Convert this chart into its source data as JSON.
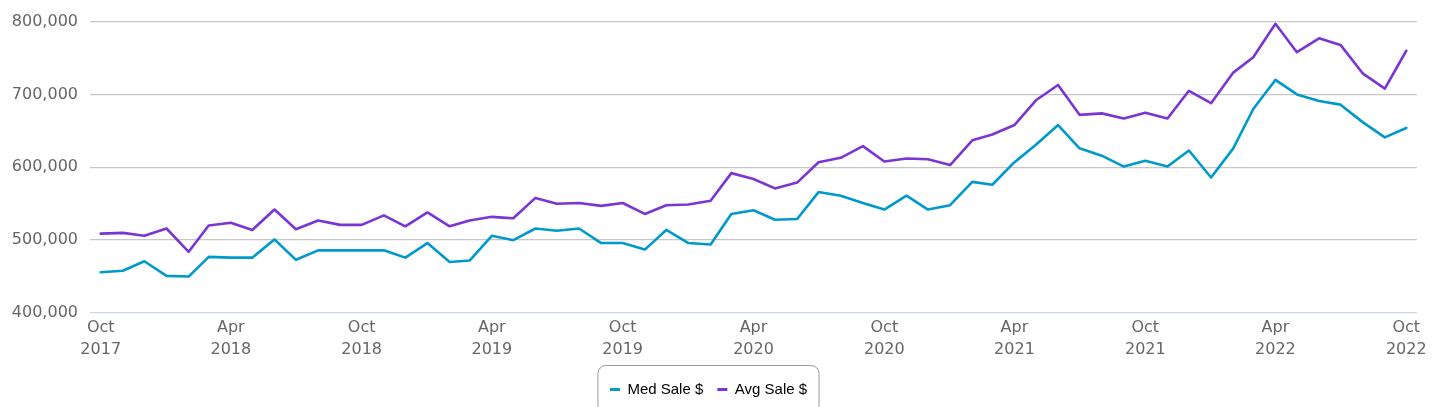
{
  "chart_data": {
    "type": "line",
    "x": [
      "2017-10",
      "2017-11",
      "2017-12",
      "2018-01",
      "2018-02",
      "2018-03",
      "2018-04",
      "2018-05",
      "2018-06",
      "2018-07",
      "2018-08",
      "2018-09",
      "2018-10",
      "2018-11",
      "2018-12",
      "2019-01",
      "2019-02",
      "2019-03",
      "2019-04",
      "2019-05",
      "2019-06",
      "2019-07",
      "2019-08",
      "2019-09",
      "2019-10",
      "2019-11",
      "2019-12",
      "2020-01",
      "2020-02",
      "2020-03",
      "2020-04",
      "2020-05",
      "2020-06",
      "2020-07",
      "2020-08",
      "2020-09",
      "2020-10",
      "2020-11",
      "2020-12",
      "2021-01",
      "2021-02",
      "2021-03",
      "2021-04",
      "2021-05",
      "2021-06",
      "2021-07",
      "2021-08",
      "2021-09",
      "2021-10",
      "2021-11",
      "2021-12",
      "2022-01",
      "2022-02",
      "2022-03",
      "2022-04",
      "2022-05",
      "2022-06",
      "2022-07",
      "2022-08",
      "2022-09",
      "2022-10"
    ],
    "series": [
      {
        "name": "Med Sale $",
        "color": "#0099cc",
        "values": [
          456000,
          458000,
          471000,
          451000,
          450000,
          477000,
          476000,
          476000,
          501000,
          473000,
          486000,
          486000,
          486000,
          486000,
          476000,
          496000,
          470000,
          472000,
          506000,
          500000,
          516000,
          513000,
          516000,
          496000,
          496000,
          487000,
          514000,
          496000,
          494000,
          536000,
          541000,
          528000,
          529000,
          566000,
          561000,
          551000,
          542000,
          561000,
          542000,
          548000,
          580000,
          576000,
          607000,
          631000,
          658000,
          626000,
          616000,
          601000,
          609000,
          601000,
          623000,
          586000,
          626000,
          680000,
          720000,
          700000,
          691000,
          686000,
          662000,
          641000,
          654000
        ]
      },
      {
        "name": "Avg Sale $",
        "color": "#7a35d3",
        "values": [
          509000,
          510000,
          506000,
          516000,
          484000,
          520000,
          524000,
          514000,
          542000,
          515000,
          527000,
          521000,
          521000,
          534000,
          519000,
          538000,
          519000,
          527000,
          532000,
          530000,
          558000,
          550000,
          551000,
          547000,
          551000,
          536000,
          548000,
          549000,
          554000,
          592000,
          584000,
          571000,
          579000,
          607000,
          613000,
          629000,
          608000,
          612000,
          611000,
          603000,
          637000,
          645000,
          658000,
          692000,
          713000,
          672000,
          674000,
          667000,
          675000,
          667000,
          705000,
          688000,
          730000,
          751000,
          797000,
          758000,
          777000,
          768000,
          729000,
          708000,
          760000
        ]
      }
    ],
    "xlim": [
      "2017-09-16",
      "2022-10-16"
    ],
    "xticks": [
      {
        "value": "2017-10",
        "label": "Oct 2017"
      },
      {
        "value": "2018-04",
        "label": "Apr 2018"
      },
      {
        "value": "2018-10",
        "label": "Oct 2018"
      },
      {
        "value": "2019-04",
        "label": "Apr 2019"
      },
      {
        "value": "2019-10",
        "label": "Oct 2019"
      },
      {
        "value": "2020-04",
        "label": "Apr 2020"
      },
      {
        "value": "2020-10",
        "label": "Oct 2020"
      },
      {
        "value": "2021-04",
        "label": "Apr 2021"
      },
      {
        "value": "2021-10",
        "label": "Oct 2021"
      },
      {
        "value": "2022-04",
        "label": "Apr 2022"
      },
      {
        "value": "2022-10",
        "label": "Oct 2022"
      }
    ],
    "ylim": [
      400000,
      800000
    ],
    "yticks": [
      {
        "value": 400000,
        "label": "400,000"
      },
      {
        "value": 500000,
        "label": "500,000"
      },
      {
        "value": 600000,
        "label": "600,000"
      },
      {
        "value": 700000,
        "label": "700,000"
      },
      {
        "value": 800000,
        "label": "800,000"
      }
    ],
    "grid": "y",
    "legend": "bottom"
  }
}
